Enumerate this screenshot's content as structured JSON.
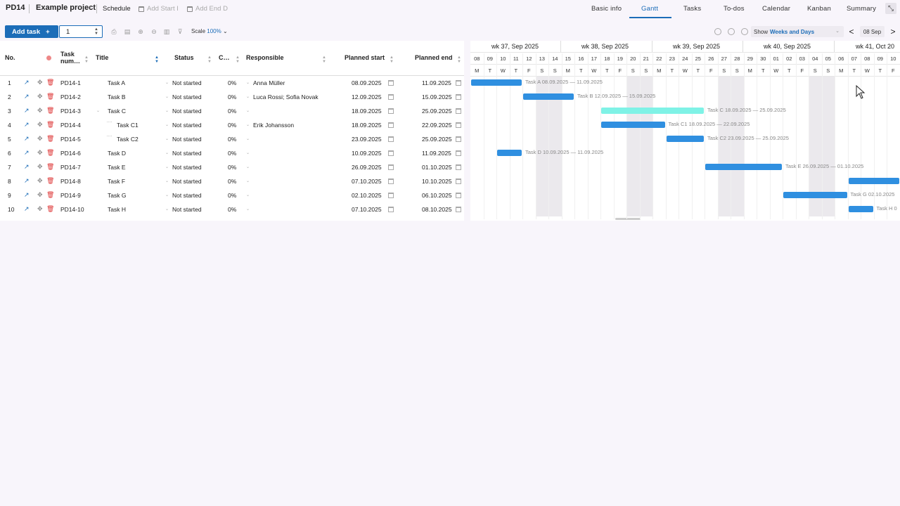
{
  "header": {
    "project_code": "PD14",
    "project_name": "Example project",
    "section": "Schedule",
    "add_start": "Add Start I",
    "add_end": "Add End D",
    "tabs": [
      "Basic info",
      "Gantt",
      "Tasks",
      "To-dos",
      "Calendar",
      "Kanban",
      "Summary"
    ],
    "active_tab": "Gantt"
  },
  "toolbar": {
    "add_task_label": "Add task",
    "add_task_icon": "+",
    "quantity": "1",
    "scale_label": "Scale",
    "scale_value": "100%",
    "show_label": "Show",
    "show_value": "Weeks and Days",
    "prev_label": "<",
    "next_label": ">",
    "current_date": "08 Sep"
  },
  "columns": {
    "no": "No.",
    "task_num": "Task num…",
    "title": "Title",
    "status": "Status",
    "completion": "C…",
    "responsible": "Responsible",
    "planned_start": "Planned start",
    "planned_end": "Planned end"
  },
  "tasks": [
    {
      "no": "1",
      "code": "PD14-1",
      "title": "Task A",
      "status": "Not started",
      "pct": "0%",
      "resp": "Anna Müller",
      "start": "08.09.2025",
      "end": "11.09.2025"
    },
    {
      "no": "2",
      "code": "PD14-2",
      "title": "Task B",
      "status": "Not started",
      "pct": "0%",
      "resp": "Luca Rossi; Sofia Novak",
      "start": "12.09.2025",
      "end": "15.09.2025"
    },
    {
      "no": "3",
      "code": "PD14-3",
      "title": "Task C",
      "status": "Not started",
      "pct": "0%",
      "resp": "",
      "start": "18.09.2025",
      "end": "25.09.2025"
    },
    {
      "no": "4",
      "code": "PD14-4",
      "title": "Task C1",
      "status": "Not started",
      "pct": "0%",
      "resp": "Erik Johansson",
      "start": "18.09.2025",
      "end": "22.09.2025"
    },
    {
      "no": "5",
      "code": "PD14-5",
      "title": "Task C2",
      "status": "Not started",
      "pct": "0%",
      "resp": "",
      "start": "23.09.2025",
      "end": "25.09.2025"
    },
    {
      "no": "6",
      "code": "PD14-6",
      "title": "Task D",
      "status": "Not started",
      "pct": "0%",
      "resp": "",
      "start": "10.09.2025",
      "end": "11.09.2025"
    },
    {
      "no": "7",
      "code": "PD14-7",
      "title": "Task E",
      "status": "Not started",
      "pct": "0%",
      "resp": "",
      "start": "26.09.2025",
      "end": "01.10.2025"
    },
    {
      "no": "8",
      "code": "PD14-8",
      "title": "Task F",
      "status": "Not started",
      "pct": "0%",
      "resp": "",
      "start": "07.10.2025",
      "end": "10.10.2025"
    },
    {
      "no": "9",
      "code": "PD14-9",
      "title": "Task G",
      "status": "Not started",
      "pct": "0%",
      "resp": "",
      "start": "02.10.2025",
      "end": "06.10.2025"
    },
    {
      "no": "10",
      "code": "PD14-10",
      "title": "Task H",
      "status": "Not started",
      "pct": "0%",
      "resp": "",
      "start": "07.10.2025",
      "end": "08.10.2025"
    }
  ],
  "gantt": {
    "weeks": [
      "wk 37, Sep 2025",
      "wk 38, Sep 2025",
      "wk 39, Sep 2025",
      "wk 40, Sep 2025",
      "wk 41, Oct 20"
    ],
    "days": [
      "08",
      "09",
      "10",
      "11",
      "12",
      "13",
      "14",
      "15",
      "16",
      "17",
      "18",
      "19",
      "20",
      "21",
      "22",
      "23",
      "24",
      "25",
      "26",
      "27",
      "28",
      "29",
      "30",
      "01",
      "02",
      "03",
      "04",
      "05",
      "06",
      "07",
      "08",
      "09",
      "10"
    ],
    "letters": [
      "M",
      "T",
      "W",
      "T",
      "F",
      "S",
      "S",
      "M",
      "T",
      "W",
      "T",
      "F",
      "S",
      "S",
      "M",
      "T",
      "W",
      "T",
      "F",
      "S",
      "S",
      "M",
      "T",
      "W",
      "T",
      "F",
      "S",
      "S",
      "M",
      "T",
      "W",
      "T",
      "F"
    ],
    "bar_labels": [
      "Task A 08.09.2025 — 11.09.2025",
      "Task B 12.09.2025 — 15.09.2025",
      "Task C 18.09.2025 — 25.09.2025",
      "Task C1 18.09.2025 — 22.09.2025",
      "Task C2 23.09.2025 — 25.09.2025",
      "Task D 10.09.2025 — 11.09.2025",
      "Task E 26.09.2025 — 01.10.2025",
      "",
      "Task G 02.10.2025",
      "Task H 0"
    ],
    "bar_color": "#2f8fe0",
    "summary_bar_color": "#7ff2e6"
  }
}
